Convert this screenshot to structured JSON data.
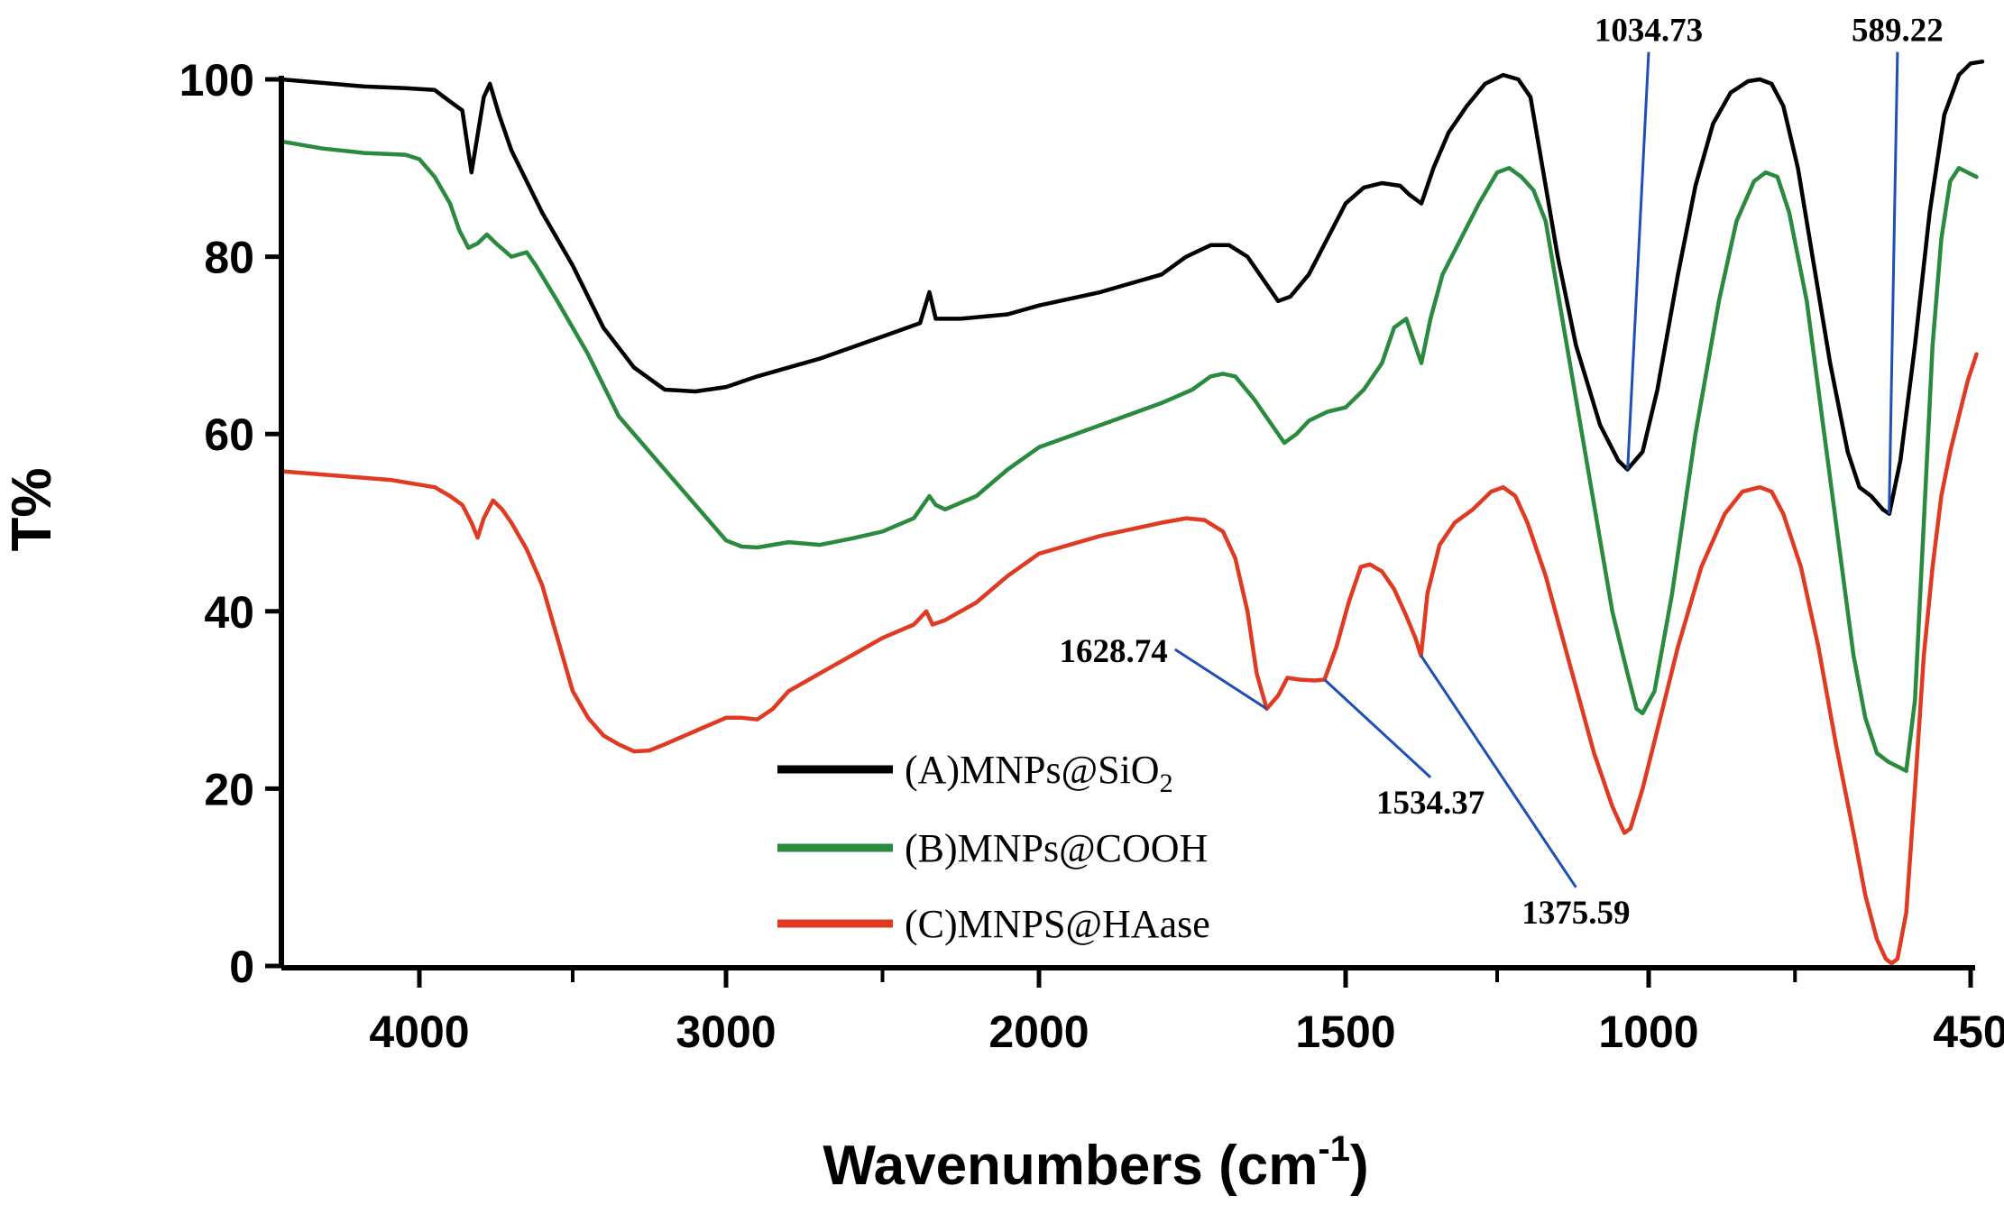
{
  "chart_data": {
    "type": "line",
    "title": "",
    "xlabel": "Wavenumbers (cm",
    "xlabel_superscript": "-1",
    "xlabel_close": ")",
    "ylabel": "T%",
    "xlim": [
      4500,
      400
    ],
    "ylim": [
      0,
      100
    ],
    "x_reversed": true,
    "x_ticks": [
      4000,
      3000,
      2000,
      1500,
      1000,
      450
    ],
    "y_ticks": [
      0,
      20,
      40,
      60,
      80,
      100
    ],
    "grid": false,
    "legend_position": "center",
    "colors": {
      "axis": "#000000",
      "annotation_line": "#1f4fb4"
    },
    "series": [
      {
        "name": "(A)MNPs@SiO",
        "name_subscript": "2",
        "color": "#000000",
        "points": [
          [
            4500,
            100
          ],
          [
            4200,
            99.2
          ],
          [
            4050,
            99
          ],
          [
            3950,
            98.8
          ],
          [
            3900,
            97.5
          ],
          [
            3860,
            96.5
          ],
          [
            3830,
            89.5
          ],
          [
            3790,
            98
          ],
          [
            3770,
            99.5
          ],
          [
            3740,
            96
          ],
          [
            3700,
            92
          ],
          [
            3600,
            85
          ],
          [
            3500,
            79
          ],
          [
            3400,
            72
          ],
          [
            3300,
            67.5
          ],
          [
            3200,
            65
          ],
          [
            3100,
            64.8
          ],
          [
            3000,
            65.3
          ],
          [
            2900,
            66.5
          ],
          [
            2700,
            68.5
          ],
          [
            2500,
            71
          ],
          [
            2380,
            72.5
          ],
          [
            2350,
            76
          ],
          [
            2330,
            73
          ],
          [
            2250,
            73
          ],
          [
            2100,
            73.5
          ],
          [
            2000,
            74.5
          ],
          [
            1900,
            76
          ],
          [
            1800,
            78
          ],
          [
            1760,
            80
          ],
          [
            1720,
            81.3
          ],
          [
            1690,
            81.3
          ],
          [
            1660,
            80
          ],
          [
            1630,
            77
          ],
          [
            1610,
            75
          ],
          [
            1590,
            75.5
          ],
          [
            1560,
            78
          ],
          [
            1530,
            82
          ],
          [
            1500,
            86
          ],
          [
            1470,
            87.8
          ],
          [
            1440,
            88.3
          ],
          [
            1410,
            88
          ],
          [
            1395,
            87
          ],
          [
            1375,
            86
          ],
          [
            1355,
            90
          ],
          [
            1330,
            94
          ],
          [
            1300,
            97
          ],
          [
            1270,
            99.5
          ],
          [
            1240,
            100.5
          ],
          [
            1215,
            100
          ],
          [
            1195,
            98
          ],
          [
            1175,
            90
          ],
          [
            1150,
            80
          ],
          [
            1120,
            70
          ],
          [
            1080,
            61
          ],
          [
            1050,
            57
          ],
          [
            1035,
            56
          ],
          [
            1010,
            58
          ],
          [
            985,
            65
          ],
          [
            950,
            78
          ],
          [
            920,
            88
          ],
          [
            890,
            95
          ],
          [
            860,
            98.5
          ],
          [
            830,
            99.8
          ],
          [
            810,
            100
          ],
          [
            790,
            99.5
          ],
          [
            770,
            97
          ],
          [
            745,
            90
          ],
          [
            720,
            80
          ],
          [
            690,
            68
          ],
          [
            660,
            58
          ],
          [
            640,
            54
          ],
          [
            620,
            53
          ],
          [
            600,
            51.5
          ],
          [
            589,
            51
          ],
          [
            570,
            57
          ],
          [
            545,
            70
          ],
          [
            520,
            85
          ],
          [
            495,
            96
          ],
          [
            470,
            100.5
          ],
          [
            450,
            101.8
          ],
          [
            430,
            102
          ]
        ]
      },
      {
        "name": "(B)MNPs@COOH",
        "color": "#2a8a3e",
        "points": [
          [
            4500,
            93
          ],
          [
            4350,
            92.2
          ],
          [
            4200,
            91.7
          ],
          [
            4050,
            91.5
          ],
          [
            4000,
            91
          ],
          [
            3950,
            89
          ],
          [
            3900,
            86
          ],
          [
            3870,
            83
          ],
          [
            3840,
            81
          ],
          [
            3810,
            81.5
          ],
          [
            3780,
            82.5
          ],
          [
            3750,
            81.5
          ],
          [
            3700,
            80
          ],
          [
            3650,
            80.5
          ],
          [
            3620,
            79
          ],
          [
            3550,
            75
          ],
          [
            3450,
            69
          ],
          [
            3350,
            62
          ],
          [
            3250,
            58
          ],
          [
            3150,
            54
          ],
          [
            3050,
            50
          ],
          [
            3000,
            48
          ],
          [
            2950,
            47.3
          ],
          [
            2900,
            47.2
          ],
          [
            2800,
            47.8
          ],
          [
            2700,
            47.5
          ],
          [
            2600,
            48.2
          ],
          [
            2500,
            49
          ],
          [
            2400,
            50.5
          ],
          [
            2380,
            51.5
          ],
          [
            2350,
            53
          ],
          [
            2330,
            52
          ],
          [
            2300,
            51.5
          ],
          [
            2200,
            53
          ],
          [
            2100,
            56
          ],
          [
            2000,
            58.5
          ],
          [
            1900,
            61
          ],
          [
            1800,
            63.5
          ],
          [
            1750,
            65
          ],
          [
            1720,
            66.5
          ],
          [
            1700,
            66.8
          ],
          [
            1680,
            66.5
          ],
          [
            1650,
            64
          ],
          [
            1620,
            61
          ],
          [
            1600,
            59
          ],
          [
            1580,
            60
          ],
          [
            1560,
            61.5
          ],
          [
            1530,
            62.5
          ],
          [
            1500,
            63
          ],
          [
            1470,
            65
          ],
          [
            1440,
            68
          ],
          [
            1420,
            72
          ],
          [
            1400,
            73
          ],
          [
            1390,
            71
          ],
          [
            1375,
            68
          ],
          [
            1360,
            73
          ],
          [
            1340,
            78
          ],
          [
            1310,
            82
          ],
          [
            1280,
            86
          ],
          [
            1250,
            89.5
          ],
          [
            1230,
            90
          ],
          [
            1210,
            89
          ],
          [
            1190,
            87.5
          ],
          [
            1170,
            84
          ],
          [
            1140,
            72
          ],
          [
            1100,
            56
          ],
          [
            1060,
            40
          ],
          [
            1035,
            33
          ],
          [
            1020,
            29
          ],
          [
            1010,
            28.5
          ],
          [
            990,
            31
          ],
          [
            960,
            42
          ],
          [
            920,
            60
          ],
          [
            880,
            75
          ],
          [
            850,
            84
          ],
          [
            820,
            88.5
          ],
          [
            800,
            89.5
          ],
          [
            780,
            89
          ],
          [
            760,
            85
          ],
          [
            730,
            75
          ],
          [
            700,
            60
          ],
          [
            670,
            45
          ],
          [
            650,
            35
          ],
          [
            630,
            28
          ],
          [
            610,
            24
          ],
          [
            590,
            23
          ],
          [
            575,
            22.5
          ],
          [
            560,
            22
          ],
          [
            545,
            30
          ],
          [
            530,
            50
          ],
          [
            515,
            70
          ],
          [
            500,
            82
          ],
          [
            485,
            88.5
          ],
          [
            470,
            90
          ],
          [
            455,
            89.5
          ],
          [
            440,
            89
          ]
        ]
      },
      {
        "name": "(C)MNPS@HAase",
        "color": "#e03a22",
        "points": [
          [
            4500,
            55.8
          ],
          [
            4300,
            55.3
          ],
          [
            4100,
            54.8
          ],
          [
            3950,
            54
          ],
          [
            3900,
            53
          ],
          [
            3860,
            52
          ],
          [
            3830,
            50
          ],
          [
            3810,
            48.3
          ],
          [
            3790,
            50.5
          ],
          [
            3760,
            52.5
          ],
          [
            3730,
            51.5
          ],
          [
            3700,
            50
          ],
          [
            3650,
            47
          ],
          [
            3600,
            43
          ],
          [
            3550,
            37
          ],
          [
            3500,
            31
          ],
          [
            3450,
            28
          ],
          [
            3400,
            26
          ],
          [
            3350,
            25
          ],
          [
            3300,
            24.2
          ],
          [
            3250,
            24.3
          ],
          [
            3200,
            25
          ],
          [
            3100,
            26.5
          ],
          [
            3000,
            28
          ],
          [
            2950,
            28
          ],
          [
            2900,
            27.8
          ],
          [
            2850,
            29
          ],
          [
            2800,
            31
          ],
          [
            2700,
            33
          ],
          [
            2600,
            35
          ],
          [
            2500,
            37
          ],
          [
            2400,
            38.5
          ],
          [
            2360,
            40
          ],
          [
            2340,
            38.5
          ],
          [
            2300,
            39
          ],
          [
            2200,
            41
          ],
          [
            2100,
            44
          ],
          [
            2000,
            46.5
          ],
          [
            1900,
            48.5
          ],
          [
            1800,
            50
          ],
          [
            1760,
            50.5
          ],
          [
            1730,
            50.3
          ],
          [
            1700,
            49
          ],
          [
            1680,
            46
          ],
          [
            1660,
            40
          ],
          [
            1645,
            33
          ],
          [
            1628.74,
            29
          ],
          [
            1610,
            30.5
          ],
          [
            1595,
            32.5
          ],
          [
            1575,
            32.3
          ],
          [
            1550,
            32.2
          ],
          [
            1534.37,
            32.3
          ],
          [
            1515,
            36
          ],
          [
            1495,
            41
          ],
          [
            1475,
            45
          ],
          [
            1460,
            45.3
          ],
          [
            1440,
            44.5
          ],
          [
            1420,
            42.5
          ],
          [
            1400,
            39.5
          ],
          [
            1385,
            37
          ],
          [
            1375.59,
            35
          ],
          [
            1365,
            42
          ],
          [
            1345,
            47.5
          ],
          [
            1320,
            50
          ],
          [
            1290,
            51.5
          ],
          [
            1260,
            53.5
          ],
          [
            1240,
            54
          ],
          [
            1220,
            53
          ],
          [
            1200,
            50
          ],
          [
            1170,
            44
          ],
          [
            1130,
            34
          ],
          [
            1090,
            24
          ],
          [
            1060,
            18
          ],
          [
            1040,
            15
          ],
          [
            1030,
            15.5
          ],
          [
            1010,
            20
          ],
          [
            980,
            28
          ],
          [
            950,
            36
          ],
          [
            910,
            45
          ],
          [
            870,
            51
          ],
          [
            840,
            53.5
          ],
          [
            810,
            54
          ],
          [
            790,
            53.5
          ],
          [
            770,
            51
          ],
          [
            740,
            45
          ],
          [
            710,
            36
          ],
          [
            680,
            25
          ],
          [
            650,
            15
          ],
          [
            630,
            8
          ],
          [
            610,
            3
          ],
          [
            595,
            0.8
          ],
          [
            585,
            0.3
          ],
          [
            575,
            0.8
          ],
          [
            560,
            6
          ],
          [
            545,
            20
          ],
          [
            530,
            35
          ],
          [
            515,
            45
          ],
          [
            500,
            53
          ],
          [
            485,
            58
          ],
          [
            470,
            62
          ],
          [
            455,
            66
          ],
          [
            440,
            69
          ]
        ]
      }
    ],
    "annotations": [
      {
        "label": "1034.73",
        "x": 1034.73,
        "y": 56,
        "label_x": 1000,
        "label_y": 104.3,
        "anchor": "middle"
      },
      {
        "label": "589.22",
        "x": 589.22,
        "y": 51,
        "label_x": 575,
        "label_y": 104.3,
        "anchor": "middle"
      },
      {
        "label": "1628.74",
        "x": 1628.74,
        "y": 29,
        "label_x": 1790,
        "label_y": 35.5,
        "anchor": "end"
      },
      {
        "label": "1534.37",
        "x": 1534.37,
        "y": 32.3,
        "label_x": 1360,
        "label_y": 17.2,
        "anchor": "middle"
      },
      {
        "label": "1375.59",
        "x": 1375.59,
        "y": 35,
        "label_x": 1120,
        "label_y": 4.8,
        "anchor": "middle"
      }
    ]
  }
}
